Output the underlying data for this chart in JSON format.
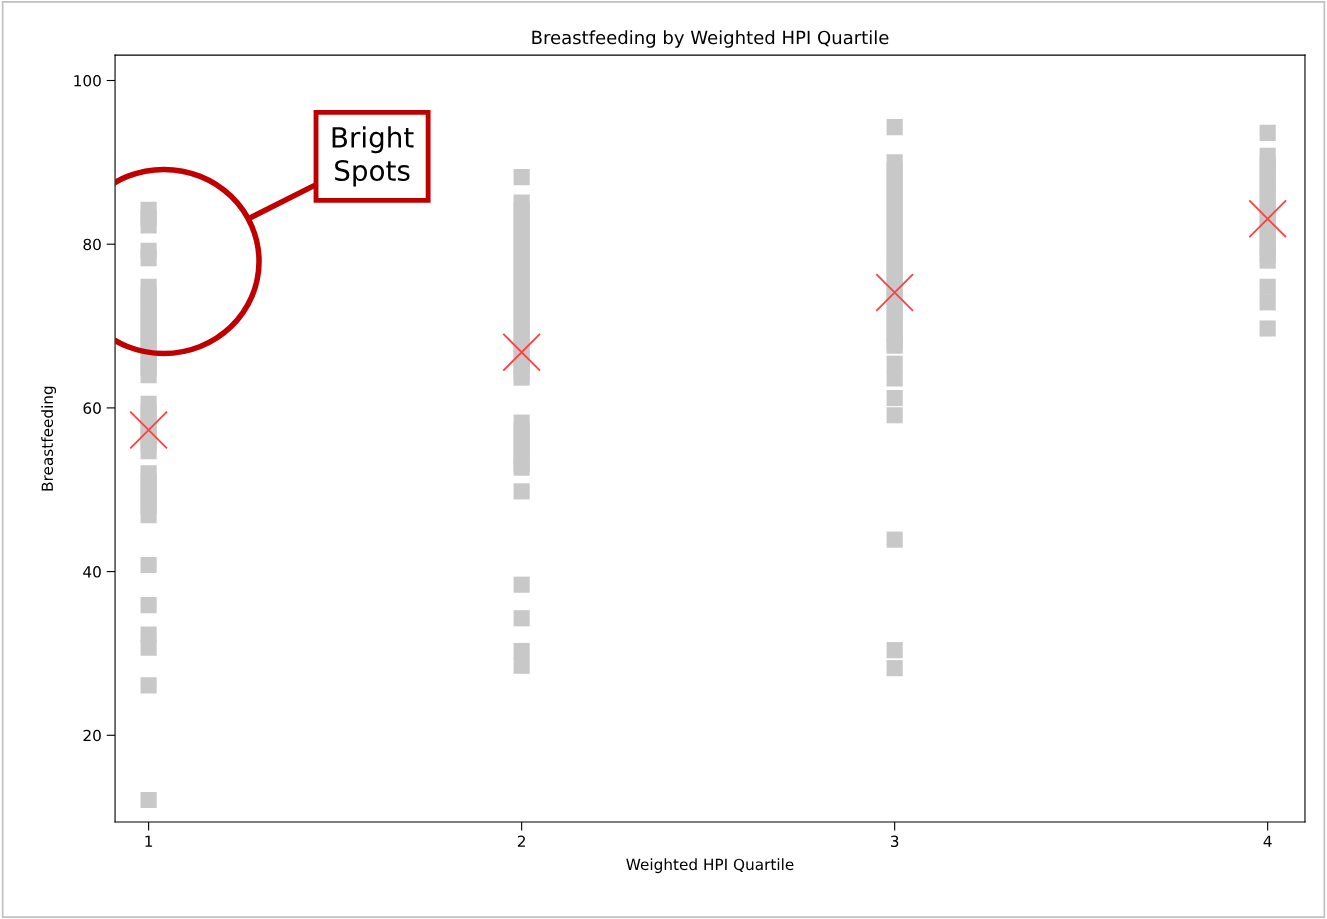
{
  "chart_data": {
    "type": "scatter",
    "title": "Breastfeeding by Weighted HPI Quartile",
    "xlabel": "Weighted HPI Quartile",
    "ylabel": "Breastfeeding",
    "xlim": [
      0.91,
      4.1
    ],
    "ylim": [
      9.4,
      103.1
    ],
    "xticks": [
      1,
      2,
      3,
      4
    ],
    "yticks": [
      20,
      40,
      60,
      80,
      100
    ],
    "grid": false,
    "series": [
      {
        "color": "#c8c8c8",
        "marker": "square",
        "x": [
          1,
          1,
          1,
          1,
          1,
          1,
          1,
          1,
          1,
          1,
          1,
          1,
          1,
          1,
          1,
          1,
          1,
          1,
          1,
          1,
          1,
          1,
          1,
          1,
          1,
          1,
          1,
          1,
          1,
          1,
          1,
          1,
          1,
          1,
          1,
          1,
          2,
          2,
          2,
          2,
          2,
          2,
          2,
          2,
          2,
          2,
          2,
          2,
          2,
          2,
          2,
          2,
          2,
          2,
          2,
          2,
          2,
          2,
          2,
          2,
          2,
          2,
          2,
          2,
          2,
          2,
          2,
          2,
          2,
          2,
          2,
          2,
          3,
          3,
          3,
          3,
          3,
          3,
          3,
          3,
          3,
          3,
          3,
          3,
          3,
          3,
          3,
          3,
          3,
          3,
          3,
          3,
          3,
          3,
          3,
          3,
          3,
          3,
          3,
          3,
          3,
          3,
          3,
          3,
          4,
          4,
          4,
          4,
          4,
          4,
          4,
          4,
          4,
          4,
          4,
          4,
          4,
          4,
          4,
          4,
          4,
          4
        ],
        "values": [
          84.2,
          83.2,
          82.3,
          79.2,
          78.3,
          74.8,
          73.8,
          72.8,
          71.8,
          70.8,
          69.8,
          68.8,
          67.8,
          66.8,
          65.8,
          64.9,
          64.0,
          60.5,
          59.5,
          58.5,
          57.5,
          56.5,
          55.6,
          54.7,
          52.0,
          51.0,
          50.0,
          49.0,
          48.0,
          46.9,
          40.8,
          35.9,
          32.3,
          30.7,
          26.1,
          12.1,
          88.2,
          85.1,
          84.1,
          83.1,
          82.1,
          81.1,
          80.1,
          79.1,
          78.1,
          77.1,
          76.1,
          75.1,
          74.1,
          73.1,
          72.1,
          71.1,
          70.1,
          69.1,
          68.1,
          67.1,
          66.1,
          65.1,
          64.4,
          63.7,
          58.2,
          57.2,
          56.2,
          55.2,
          54.2,
          53.2,
          52.7,
          49.8,
          38.4,
          34.3,
          30.3,
          28.5,
          94.3,
          90.0,
          89.0,
          88.0,
          87.0,
          86.0,
          85.0,
          84.0,
          83.0,
          82.0,
          81.0,
          80.0,
          79.0,
          78.0,
          77.0,
          76.0,
          75.0,
          74.0,
          73.0,
          72.0,
          71.0,
          70.0,
          69.0,
          68.0,
          67.6,
          65.4,
          63.6,
          61.2,
          59.1,
          43.9,
          30.4,
          28.2,
          93.6,
          90.8,
          89.8,
          88.8,
          87.8,
          86.8,
          85.8,
          84.8,
          83.8,
          82.8,
          81.8,
          80.8,
          79.8,
          78.8,
          78.0,
          74.8,
          72.9,
          69.7
        ]
      },
      {
        "color": "#ff4040",
        "marker": "cross",
        "x": [
          1,
          2,
          3,
          4
        ],
        "values": [
          57.3,
          66.8,
          74.1,
          83.1
        ]
      }
    ],
    "annotations": [
      "Bright\nSpots"
    ]
  }
}
